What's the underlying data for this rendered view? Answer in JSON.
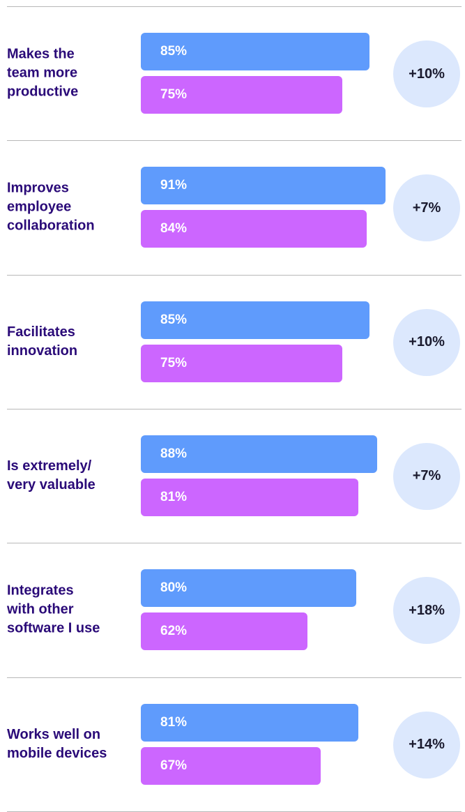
{
  "chart_data": {
    "type": "bar",
    "categories": [
      "Makes the\nteam more\nproductive",
      "Improves\nemployee\ncollaboration",
      "Facilitates\ninnovation",
      "Is extremely/\nvery valuable",
      "Integrates\nwith other\nsoftware I use",
      "Works well on\nmobile devices"
    ],
    "series": [
      {
        "color": "#5f9bfc",
        "values": [
          85,
          91,
          85,
          88,
          80,
          81
        ],
        "value_labels": [
          "85%",
          "91%",
          "85%",
          "88%",
          "80%",
          "81%"
        ]
      },
      {
        "color": "#cc66ff",
        "values": [
          75,
          84,
          75,
          81,
          62,
          67
        ],
        "value_labels": [
          "75%",
          "84%",
          "75%",
          "81%",
          "62%",
          "67%"
        ]
      }
    ],
    "differences": {
      "color": "#dce8fd",
      "values": [
        10,
        7,
        10,
        7,
        18,
        14
      ],
      "value_labels": [
        "+10%",
        "+7%",
        "+10%",
        "+7%",
        "+18%",
        "+14%"
      ]
    }
  }
}
